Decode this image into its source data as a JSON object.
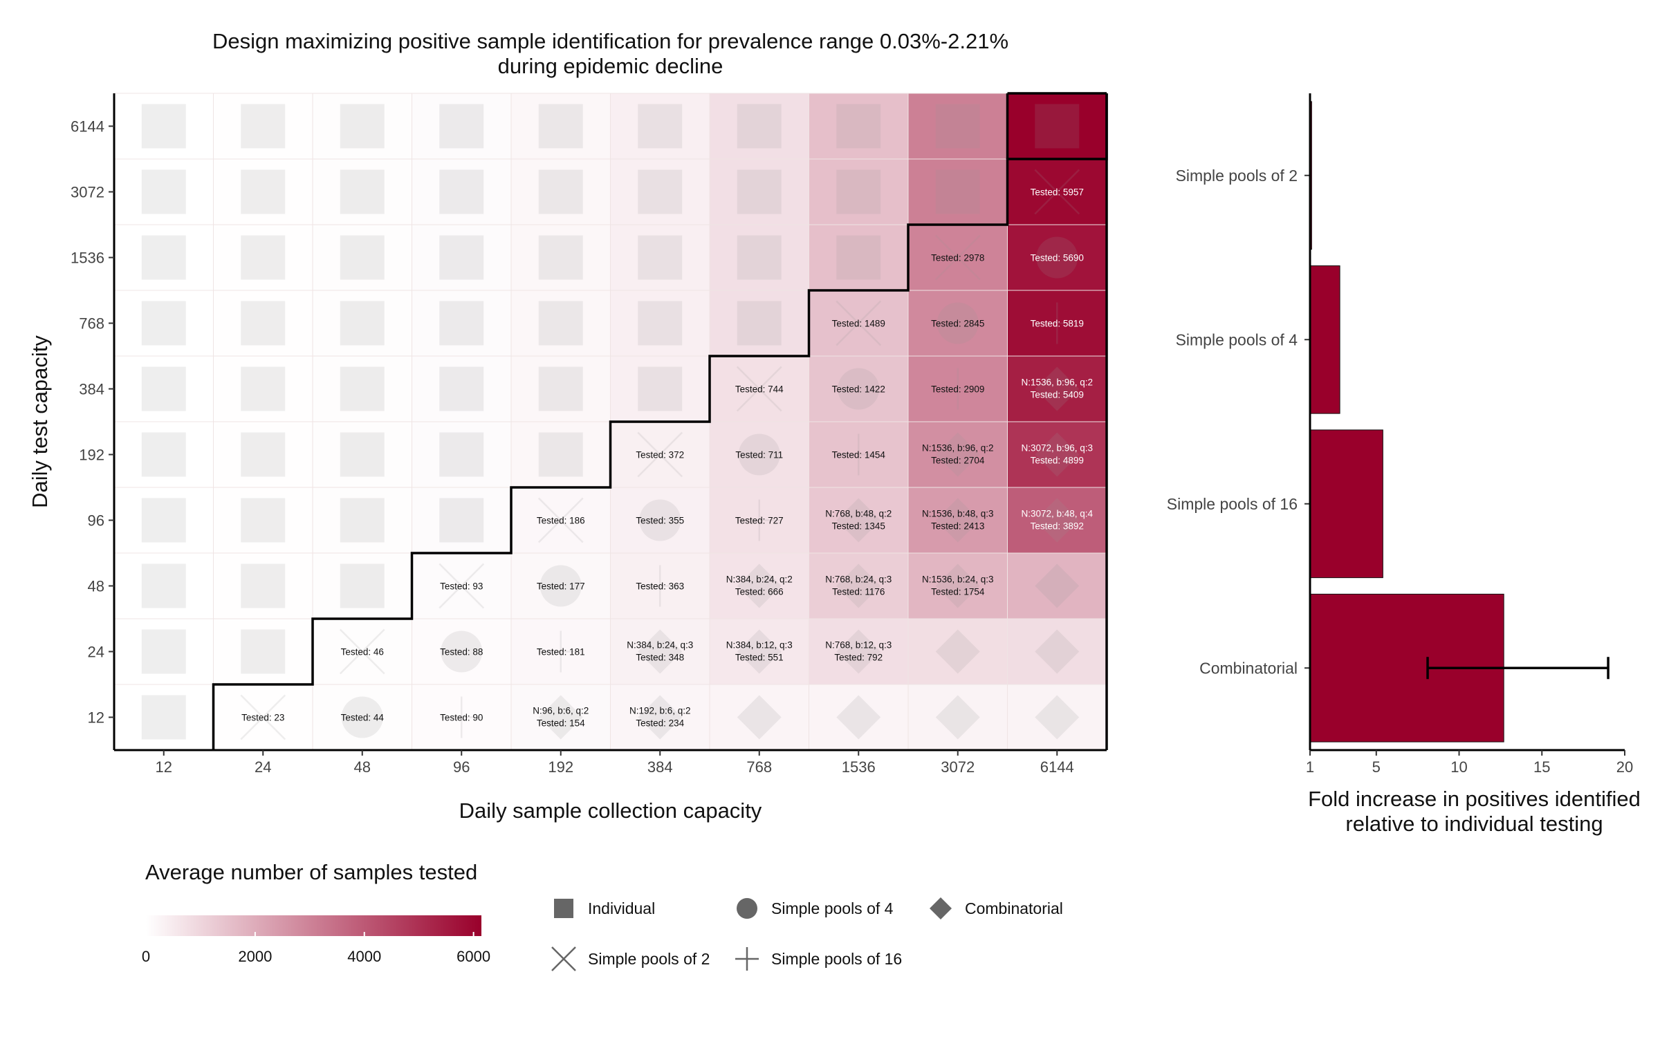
{
  "chart_data": [
    {
      "type": "heatmap",
      "title": "Design maximizing positive sample identification for prevalence range 0.03%-2.21%",
      "subtitle": "during epidemic decline",
      "xlabel": "Daily sample collection capacity",
      "ylabel": "Daily test capacity",
      "x_categories": [
        "12",
        "24",
        "48",
        "96",
        "192",
        "384",
        "768",
        "1536",
        "3072",
        "6144"
      ],
      "y_categories": [
        "12",
        "24",
        "48",
        "96",
        "192",
        "384",
        "768",
        "1536",
        "3072",
        "6144"
      ],
      "cells": [
        {
          "x": "12",
          "y": "12",
          "design": "Individual",
          "tested": 12
        },
        {
          "x": "24",
          "y": "12",
          "design": "Simple pools of 2",
          "tested": 23,
          "label": "Tested: 23"
        },
        {
          "x": "48",
          "y": "12",
          "design": "Simple pools of 4",
          "tested": 44,
          "label": "Tested: 44"
        },
        {
          "x": "96",
          "y": "12",
          "design": "Simple pools of 16",
          "tested": 90,
          "label": "Tested: 90"
        },
        {
          "x": "192",
          "y": "12",
          "design": "Combinatorial",
          "tested": 154,
          "label": "N:96, b:6, q:2\nTested: 154"
        },
        {
          "x": "384",
          "y": "12",
          "design": "Combinatorial",
          "tested": 234,
          "label": "N:192, b:6, q:2\nTested: 234"
        },
        {
          "x": "768",
          "y": "12",
          "design": "Combinatorial",
          "tested": 260
        },
        {
          "x": "1536",
          "y": "12",
          "design": "Combinatorial",
          "tested": 270
        },
        {
          "x": "3072",
          "y": "12",
          "design": "Combinatorial",
          "tested": 280
        },
        {
          "x": "6144",
          "y": "12",
          "design": "Combinatorial",
          "tested": 290
        },
        {
          "x": "12",
          "y": "24",
          "design": "Individual",
          "tested": 12
        },
        {
          "x": "24",
          "y": "24",
          "design": "Individual",
          "tested": 24
        },
        {
          "x": "48",
          "y": "24",
          "design": "Simple pools of 2",
          "tested": 46,
          "label": "Tested: 46"
        },
        {
          "x": "96",
          "y": "24",
          "design": "Simple pools of 4",
          "tested": 88,
          "label": "Tested: 88"
        },
        {
          "x": "192",
          "y": "24",
          "design": "Simple pools of 16",
          "tested": 181,
          "label": "Tested: 181"
        },
        {
          "x": "384",
          "y": "24",
          "design": "Combinatorial",
          "tested": 348,
          "label": "N:384, b:24, q:3\nTested: 348"
        },
        {
          "x": "768",
          "y": "24",
          "design": "Combinatorial",
          "tested": 551,
          "label": "N:384, b:12, q:3\nTested: 551"
        },
        {
          "x": "1536",
          "y": "24",
          "design": "Combinatorial",
          "tested": 792,
          "label": "N:768, b:12, q:3\nTested: 792"
        },
        {
          "x": "3072",
          "y": "24",
          "design": "Combinatorial",
          "tested": 800
        },
        {
          "x": "6144",
          "y": "24",
          "design": "Combinatorial",
          "tested": 820
        },
        {
          "x": "12",
          "y": "48",
          "design": "Individual",
          "tested": 12
        },
        {
          "x": "24",
          "y": "48",
          "design": "Individual",
          "tested": 24
        },
        {
          "x": "48",
          "y": "48",
          "design": "Individual",
          "tested": 48
        },
        {
          "x": "96",
          "y": "48",
          "design": "Simple pools of 2",
          "tested": 93,
          "label": "Tested: 93"
        },
        {
          "x": "192",
          "y": "48",
          "design": "Simple pools of 4",
          "tested": 177,
          "label": "Tested: 177"
        },
        {
          "x": "384",
          "y": "48",
          "design": "Simple pools of 16",
          "tested": 363,
          "label": "Tested: 363"
        },
        {
          "x": "768",
          "y": "48",
          "design": "Combinatorial",
          "tested": 666,
          "label": "N:384, b:24, q:2\nTested: 666"
        },
        {
          "x": "1536",
          "y": "48",
          "design": "Combinatorial",
          "tested": 1176,
          "label": "N:768, b:24, q:3\nTested: 1176"
        },
        {
          "x": "3072",
          "y": "48",
          "design": "Combinatorial",
          "tested": 1754,
          "label": "N:1536, b:24, q:3\nTested: 1754"
        },
        {
          "x": "6144",
          "y": "48",
          "design": "Combinatorial",
          "tested": 1800
        },
        {
          "x": "12",
          "y": "96",
          "design": "Individual",
          "tested": 12
        },
        {
          "x": "24",
          "y": "96",
          "design": "Individual",
          "tested": 24
        },
        {
          "x": "48",
          "y": "96",
          "design": "Individual",
          "tested": 48
        },
        {
          "x": "96",
          "y": "96",
          "design": "Individual",
          "tested": 96
        },
        {
          "x": "192",
          "y": "96",
          "design": "Simple pools of 2",
          "tested": 186,
          "label": "Tested: 186"
        },
        {
          "x": "384",
          "y": "96",
          "design": "Simple pools of 4",
          "tested": 355,
          "label": "Tested: 355"
        },
        {
          "x": "768",
          "y": "96",
          "design": "Simple pools of 16",
          "tested": 727,
          "label": "Tested: 727"
        },
        {
          "x": "1536",
          "y": "96",
          "design": "Combinatorial",
          "tested": 1345,
          "label": "N:768, b:48, q:2\nTested: 1345"
        },
        {
          "x": "3072",
          "y": "96",
          "design": "Combinatorial",
          "tested": 2413,
          "label": "N:1536, b:48, q:3\nTested: 2413"
        },
        {
          "x": "6144",
          "y": "96",
          "design": "Combinatorial",
          "tested": 3892,
          "label": "N:3072, b:48, q:4\nTested: 3892"
        },
        {
          "x": "12",
          "y": "192",
          "design": "Individual",
          "tested": 12
        },
        {
          "x": "24",
          "y": "192",
          "design": "Individual",
          "tested": 24
        },
        {
          "x": "48",
          "y": "192",
          "design": "Individual",
          "tested": 48
        },
        {
          "x": "96",
          "y": "192",
          "design": "Individual",
          "tested": 96
        },
        {
          "x": "192",
          "y": "192",
          "design": "Individual",
          "tested": 192
        },
        {
          "x": "384",
          "y": "192",
          "design": "Simple pools of 2",
          "tested": 372,
          "label": "Tested: 372"
        },
        {
          "x": "768",
          "y": "192",
          "design": "Simple pools of 4",
          "tested": 711,
          "label": "Tested: 711"
        },
        {
          "x": "1536",
          "y": "192",
          "design": "Simple pools of 16",
          "tested": 1454,
          "label": "Tested: 1454"
        },
        {
          "x": "3072",
          "y": "192",
          "design": "Combinatorial",
          "tested": 2704,
          "label": "N:1536, b:96, q:2\nTested: 2704"
        },
        {
          "x": "6144",
          "y": "192",
          "design": "Combinatorial",
          "tested": 4899,
          "label": "N:3072, b:96, q:3\nTested: 4899"
        },
        {
          "x": "12",
          "y": "384",
          "design": "Individual",
          "tested": 12
        },
        {
          "x": "24",
          "y": "384",
          "design": "Individual",
          "tested": 24
        },
        {
          "x": "48",
          "y": "384",
          "design": "Individual",
          "tested": 48
        },
        {
          "x": "96",
          "y": "384",
          "design": "Individual",
          "tested": 96
        },
        {
          "x": "192",
          "y": "384",
          "design": "Individual",
          "tested": 192
        },
        {
          "x": "384",
          "y": "384",
          "design": "Individual",
          "tested": 384
        },
        {
          "x": "768",
          "y": "384",
          "design": "Simple pools of 2",
          "tested": 744,
          "label": "Tested: 744"
        },
        {
          "x": "1536",
          "y": "384",
          "design": "Simple pools of 4",
          "tested": 1422,
          "label": "Tested: 1422"
        },
        {
          "x": "3072",
          "y": "384",
          "design": "Simple pools of 16",
          "tested": 2909,
          "label": "Tested: 2909"
        },
        {
          "x": "6144",
          "y": "384",
          "design": "Combinatorial",
          "tested": 5409,
          "label": "N:1536, b:96, q:2\nTested: 5409"
        },
        {
          "x": "12",
          "y": "768",
          "design": "Individual",
          "tested": 12
        },
        {
          "x": "24",
          "y": "768",
          "design": "Individual",
          "tested": 24
        },
        {
          "x": "48",
          "y": "768",
          "design": "Individual",
          "tested": 48
        },
        {
          "x": "96",
          "y": "768",
          "design": "Individual",
          "tested": 96
        },
        {
          "x": "192",
          "y": "768",
          "design": "Individual",
          "tested": 192
        },
        {
          "x": "384",
          "y": "768",
          "design": "Individual",
          "tested": 384
        },
        {
          "x": "768",
          "y": "768",
          "design": "Individual",
          "tested": 768
        },
        {
          "x": "1536",
          "y": "768",
          "design": "Simple pools of 2",
          "tested": 1489,
          "label": "Tested: 1489"
        },
        {
          "x": "3072",
          "y": "768",
          "design": "Simple pools of 4",
          "tested": 2845,
          "label": "Tested: 2845"
        },
        {
          "x": "6144",
          "y": "768",
          "design": "Simple pools of 16",
          "tested": 5819,
          "label": "Tested: 5819"
        },
        {
          "x": "12",
          "y": "1536",
          "design": "Individual",
          "tested": 12
        },
        {
          "x": "24",
          "y": "1536",
          "design": "Individual",
          "tested": 24
        },
        {
          "x": "48",
          "y": "1536",
          "design": "Individual",
          "tested": 48
        },
        {
          "x": "96",
          "y": "1536",
          "design": "Individual",
          "tested": 96
        },
        {
          "x": "192",
          "y": "1536",
          "design": "Individual",
          "tested": 192
        },
        {
          "x": "384",
          "y": "1536",
          "design": "Individual",
          "tested": 384
        },
        {
          "x": "768",
          "y": "1536",
          "design": "Individual",
          "tested": 768
        },
        {
          "x": "1536",
          "y": "1536",
          "design": "Individual",
          "tested": 1536
        },
        {
          "x": "3072",
          "y": "1536",
          "design": "Simple pools of 2",
          "tested": 2978,
          "label": "Tested: 2978"
        },
        {
          "x": "6144",
          "y": "1536",
          "design": "Simple pools of 4",
          "tested": 5690,
          "label": "Tested: 5690"
        },
        {
          "x": "12",
          "y": "3072",
          "design": "Individual",
          "tested": 12
        },
        {
          "x": "24",
          "y": "3072",
          "design": "Individual",
          "tested": 24
        },
        {
          "x": "48",
          "y": "3072",
          "design": "Individual",
          "tested": 48
        },
        {
          "x": "96",
          "y": "3072",
          "design": "Individual",
          "tested": 96
        },
        {
          "x": "192",
          "y": "3072",
          "design": "Individual",
          "tested": 192
        },
        {
          "x": "384",
          "y": "3072",
          "design": "Individual",
          "tested": 384
        },
        {
          "x": "768",
          "y": "3072",
          "design": "Individual",
          "tested": 768
        },
        {
          "x": "1536",
          "y": "3072",
          "design": "Individual",
          "tested": 1536
        },
        {
          "x": "3072",
          "y": "3072",
          "design": "Individual",
          "tested": 3072
        },
        {
          "x": "6144",
          "y": "3072",
          "design": "Simple pools of 2",
          "tested": 5957,
          "label": "Tested: 5957"
        },
        {
          "x": "12",
          "y": "6144",
          "design": "Individual",
          "tested": 12
        },
        {
          "x": "24",
          "y": "6144",
          "design": "Individual",
          "tested": 24
        },
        {
          "x": "48",
          "y": "6144",
          "design": "Individual",
          "tested": 48
        },
        {
          "x": "96",
          "y": "6144",
          "design": "Individual",
          "tested": 96
        },
        {
          "x": "192",
          "y": "6144",
          "design": "Individual",
          "tested": 192
        },
        {
          "x": "384",
          "y": "6144",
          "design": "Individual",
          "tested": 384
        },
        {
          "x": "768",
          "y": "6144",
          "design": "Individual",
          "tested": 768
        },
        {
          "x": "1536",
          "y": "6144",
          "design": "Individual",
          "tested": 1536
        },
        {
          "x": "3072",
          "y": "6144",
          "design": "Individual",
          "tested": 3072
        },
        {
          "x": "6144",
          "y": "6144",
          "design": "Individual",
          "tested": 6144
        }
      ],
      "colorbar": {
        "title": "Average number of samples tested",
        "min": 0,
        "max": 6144,
        "ticks": [
          0,
          2000,
          4000,
          6000
        ],
        "low_color": "#ffffff",
        "high_color": "#99002b"
      },
      "shape_legend": {
        "items": [
          {
            "label": "Individual",
            "shape": "square"
          },
          {
            "label": "Simple pools of 4",
            "shape": "circle"
          },
          {
            "label": "Combinatorial",
            "shape": "diamond"
          },
          {
            "label": "Simple pools of 2",
            "shape": "cross"
          },
          {
            "label": "Simple pools of 16",
            "shape": "plus"
          }
        ]
      }
    },
    {
      "type": "bar",
      "orientation": "horizontal",
      "categories": [
        "Simple pools of 2",
        "Simple pools of 4",
        "Simple pools of 16",
        "Combinatorial"
      ],
      "values": [
        1.1,
        2.8,
        5.4,
        12.7
      ],
      "error_bars": [
        null,
        null,
        null,
        [
          8.1,
          19.0
        ]
      ],
      "xlabel": "Fold increase in positives identified\nrelative to individual testing",
      "xlim": [
        1,
        20
      ],
      "xticks": [
        1,
        5,
        10,
        15,
        20
      ],
      "bar_color": "#99002b"
    }
  ]
}
